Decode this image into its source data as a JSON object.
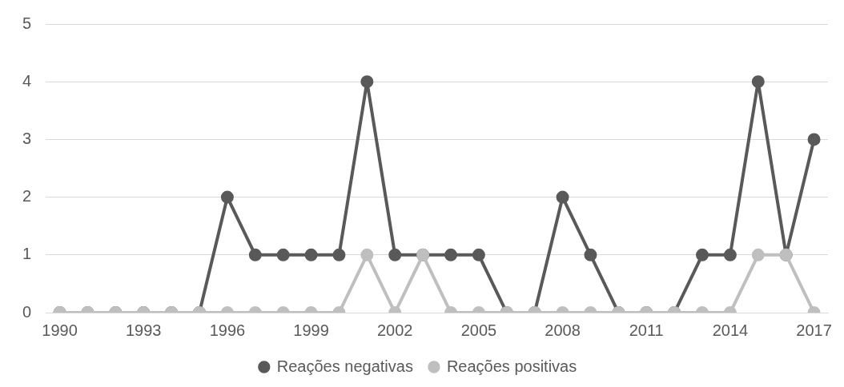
{
  "chart_data": {
    "type": "line",
    "categories": [
      "1990",
      null,
      null,
      "1993",
      null,
      null,
      "1996",
      null,
      null,
      "1999",
      null,
      null,
      "2002",
      null,
      null,
      "2005",
      null,
      null,
      "2008",
      null,
      null,
      "2011",
      null,
      null,
      "2014",
      null,
      null,
      "2017"
    ],
    "series": [
      {
        "name": "Reações negativas",
        "color": "#595959",
        "values": [
          0,
          0,
          0,
          0,
          0,
          0,
          2,
          1,
          1,
          1,
          1,
          4,
          1,
          1,
          1,
          1,
          0,
          0,
          2,
          1,
          0,
          0,
          0,
          1,
          1,
          4,
          1,
          3
        ]
      },
      {
        "name": "Reações positivas",
        "color": "#bfbfbf",
        "values": [
          0,
          0,
          0,
          0,
          0,
          0,
          0,
          0,
          0,
          0,
          0,
          1,
          0,
          1,
          0,
          0,
          0,
          0,
          0,
          0,
          0,
          0,
          0,
          0,
          0,
          1,
          1,
          0
        ]
      }
    ],
    "ylim": [
      0,
      5
    ],
    "yticks": [
      0,
      1,
      2,
      3,
      4,
      5
    ],
    "grid": "y",
    "legend": "bottom",
    "marker": "circle",
    "line_style": "solid"
  }
}
